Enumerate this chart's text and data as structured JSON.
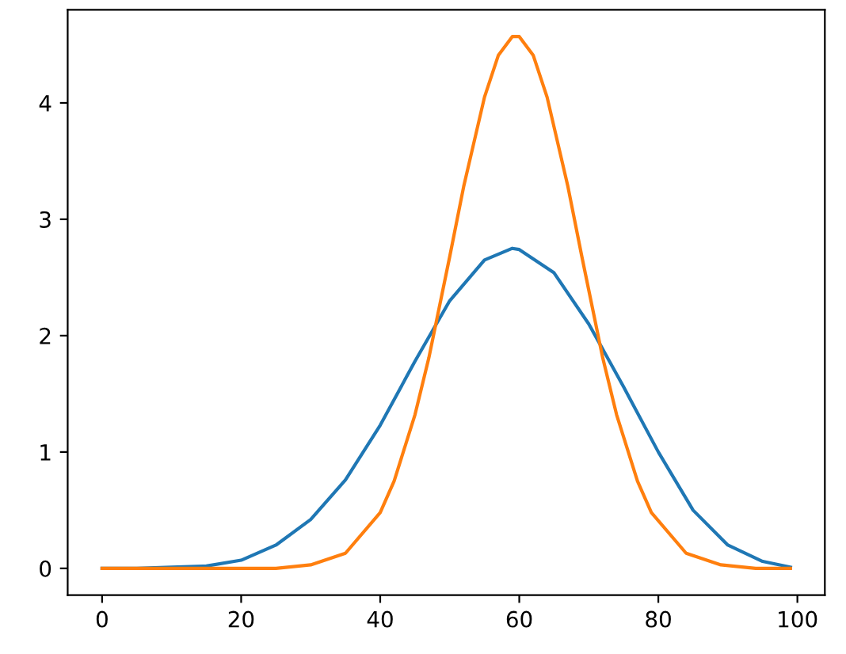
{
  "chart_data": {
    "type": "line",
    "xlim": [
      -4.95,
      103.95
    ],
    "ylim": [
      -0.23,
      4.8
    ],
    "xticks": [
      0,
      20,
      40,
      60,
      80,
      100
    ],
    "yticks": [
      0,
      1,
      2,
      3,
      4
    ],
    "grid": false,
    "legend": false,
    "series": [
      {
        "color": "#1f77b4",
        "x": [
          0,
          5,
          10,
          15,
          20,
          25,
          30,
          35,
          40,
          45,
          50,
          55,
          59,
          60,
          65,
          70,
          75,
          80,
          85,
          90,
          95,
          99
        ],
        "values": [
          0.0,
          0.0,
          0.01,
          0.02,
          0.07,
          0.2,
          0.42,
          0.76,
          1.23,
          1.78,
          2.3,
          2.65,
          2.75,
          2.74,
          2.54,
          2.1,
          1.56,
          1.0,
          0.5,
          0.2,
          0.06,
          0.01
        ]
      },
      {
        "color": "#ff7f0e",
        "x": [
          0,
          10,
          20,
          25,
          30,
          35,
          40,
          42,
          45,
          47,
          50,
          52,
          55,
          57,
          59,
          60,
          62,
          64,
          67,
          69,
          72,
          74,
          77,
          79,
          84,
          89,
          94,
          99
        ],
        "values": [
          0.0,
          0.0,
          0.0,
          0.0,
          0.03,
          0.13,
          0.48,
          0.75,
          1.32,
          1.81,
          2.68,
          3.28,
          4.05,
          4.41,
          4.57,
          4.57,
          4.41,
          4.05,
          3.28,
          2.68,
          1.81,
          1.32,
          0.75,
          0.48,
          0.13,
          0.03,
          0.0,
          0.0
        ]
      }
    ]
  }
}
